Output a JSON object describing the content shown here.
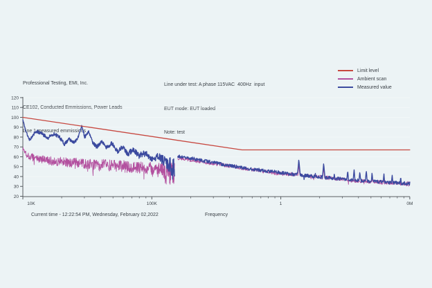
{
  "window": {
    "background": "#ecf3f5"
  },
  "header": {
    "line1": "Professional Testing, EMI, Inc.",
    "line2": "CE102, Conducted Emmissions, Power Leads",
    "line3": "Line 1 measured emmissions"
  },
  "test_info": {
    "line1": "Line under test: A phase 115VAC  400Hz  input",
    "line2": "EUT mode: EUT loaded",
    "line3": "Note: test"
  },
  "legend": {
    "items": [
      {
        "label": "Limit level",
        "color": "#c7473f",
        "weight": 1.6
      },
      {
        "label": "Ambient scan",
        "color": "#b3519f",
        "weight": 1.2
      },
      {
        "label": "Measured value",
        "color": "#3b4a9f",
        "weight": 2.4
      }
    ]
  },
  "footer": {
    "current_time": "Current time - 12:22:54 PM, Wednesday, February 02,2022",
    "x_axis_label": "Frequency"
  },
  "chart_data": {
    "type": "line",
    "x_axis": {
      "scale": "log",
      "min_hz": 10000,
      "max_hz": 10000000,
      "ticks": [
        {
          "hz": 10000,
          "label": "10K"
        },
        {
          "hz": 100000,
          "label": "100K"
        },
        {
          "hz": 1000000,
          "label": "1"
        },
        {
          "hz": 10000000,
          "label": "0M"
        }
      ]
    },
    "y_axis": {
      "min": 20,
      "max": 120,
      "step": 10,
      "labels": [
        120,
        110,
        100,
        90,
        80,
        70,
        60,
        50,
        40,
        30,
        20
      ]
    },
    "series": [
      {
        "name": "Ambient scan",
        "color": "#b3519f",
        "stroke_width": 0.9,
        "segments": [
          {
            "samples": 620,
            "down": {
              "p": 0.1,
              "max": 11
            },
            "spikes": [
              [
                37600,
                22
              ]
            ],
            "points": [
              [
                10000,
                68,
                3
              ],
              [
                11000,
                61,
                4
              ],
              [
                13000,
                58,
                4
              ],
              [
                16000,
                56,
                4.5
              ],
              [
                20000,
                55,
                5
              ],
              [
                25000,
                54,
                5
              ],
              [
                30000,
                53,
                5
              ],
              [
                37000,
                52,
                5.5
              ],
              [
                45000,
                52,
                5.5
              ],
              [
                55000,
                51,
                6
              ],
              [
                70000,
                50,
                6
              ],
              [
                85000,
                49,
                6
              ],
              [
                100000,
                48,
                6.5
              ],
              [
                118000,
                46,
                8
              ],
              [
                135000,
                45,
                11
              ],
              [
                145000,
                44,
                12
              ],
              [
                150000,
                43,
                12
              ]
            ]
          },
          {
            "samples": 700,
            "down": {
              "p": 0.02,
              "max": 6
            },
            "spikes": [
              [
                1380000,
                52
              ],
              [
                2150000,
                49
              ]
            ],
            "points": [
              [
                159000,
                59,
                2
              ],
              [
                200000,
                57,
                2
              ],
              [
                260000,
                54.5,
                2
              ],
              [
                340000,
                52,
                2
              ],
              [
                450000,
                49.5,
                2
              ],
              [
                600000,
                47,
                2
              ],
              [
                800000,
                44.5,
                2
              ],
              [
                1000000,
                43,
                2
              ],
              [
                1400000,
                41.5,
                2
              ],
              [
                2000000,
                39.5,
                2
              ],
              [
                2800000,
                37.5,
                2
              ],
              [
                4000000,
                35.5,
                2
              ],
              [
                5500000,
                34.5,
                2
              ],
              [
                7500000,
                33.5,
                2
              ],
              [
                10000000,
                32.5,
                2.5
              ]
            ]
          }
        ]
      },
      {
        "name": "Measured value",
        "color": "#3b4a9f",
        "stroke_width": 1.4,
        "segments": [
          {
            "samples": 560,
            "points": [
              [
                10000,
                98,
                0.5
              ],
              [
                10400,
                88,
                1.2
              ],
              [
                11200,
                77,
                1.6
              ],
              [
                12000,
                82,
                1.8
              ],
              [
                12800,
                86,
                1.6
              ],
              [
                14200,
                83,
                1.8
              ],
              [
                15600,
                79,
                1.8
              ],
              [
                17200,
                83,
                1.8
              ],
              [
                19000,
                81,
                1.8
              ],
              [
                21000,
                73,
                2
              ],
              [
                23000,
                78,
                1.8
              ],
              [
                25000,
                74,
                1.8
              ],
              [
                26800,
                80,
                1.5
              ],
              [
                28600,
                91,
                1.2
              ],
              [
                30200,
                80,
                1.8
              ],
              [
                32400,
                86,
                1.4
              ],
              [
                34500,
                75,
                1.8
              ],
              [
                37500,
                70,
                2.2
              ],
              [
                41000,
                76,
                1.8
              ],
              [
                44500,
                69,
                2.2
              ],
              [
                49000,
                74,
                1.8
              ],
              [
                54000,
                65,
                2.6
              ],
              [
                59000,
                70,
                2.2
              ],
              [
                65000,
                63,
                2.8
              ],
              [
                72000,
                67,
                2.6
              ],
              [
                80000,
                61,
                3.2
              ],
              [
                90000,
                64,
                3.2
              ],
              [
                100000,
                58,
                3.8
              ],
              [
                113000,
                61,
                3.8
              ],
              [
                127000,
                54,
                6
              ],
              [
                140000,
                50,
                10
              ],
              [
                148000,
                47,
                12
              ],
              [
                150000,
                46,
                12
              ]
            ]
          },
          {
            "samples": 700,
            "down": {
              "p": 0.012,
              "max": 9
            },
            "spikes": [
              [
                1380000,
                57.5
              ],
              [
                1850000,
                44
              ],
              [
                2150000,
                53.5
              ],
              [
                2600000,
                43.5
              ],
              [
                3300000,
                46
              ],
              [
                3700000,
                47
              ],
              [
                4100000,
                45
              ],
              [
                4600000,
                46
              ],
              [
                5100000,
                44
              ],
              [
                6300000,
                43
              ],
              [
                7300000,
                42
              ],
              [
                8500000,
                40
              ]
            ],
            "points": [
              [
                159000,
                60.5,
                1.5
              ],
              [
                180000,
                59.5,
                1.5
              ],
              [
                220000,
                57.5,
                1.7
              ],
              [
                280000,
                55,
                1.7
              ],
              [
                350000,
                52.5,
                1.7
              ],
              [
                450000,
                50,
                1.7
              ],
              [
                600000,
                47.5,
                1.7
              ],
              [
                800000,
                45.5,
                1.7
              ],
              [
                1000000,
                44,
                1.7
              ],
              [
                1300000,
                42,
                1.7
              ],
              [
                1700000,
                40.5,
                1.7
              ],
              [
                2200000,
                39,
                1.7
              ],
              [
                3000000,
                37.5,
                1.7
              ],
              [
                4000000,
                36,
                1.7
              ],
              [
                5500000,
                34.8,
                1.7
              ],
              [
                7500000,
                33.8,
                1.7
              ],
              [
                10000000,
                33,
                2.1
              ]
            ]
          }
        ]
      },
      {
        "name": "Limit level",
        "color": "#c7473f",
        "stroke_width": 1.3,
        "segments": [
          {
            "points": [
              [
                10000,
                100,
                0
              ],
              [
                500000,
                67,
                0
              ],
              [
                10000000,
                67,
                0
              ]
            ]
          }
        ]
      }
    ]
  }
}
